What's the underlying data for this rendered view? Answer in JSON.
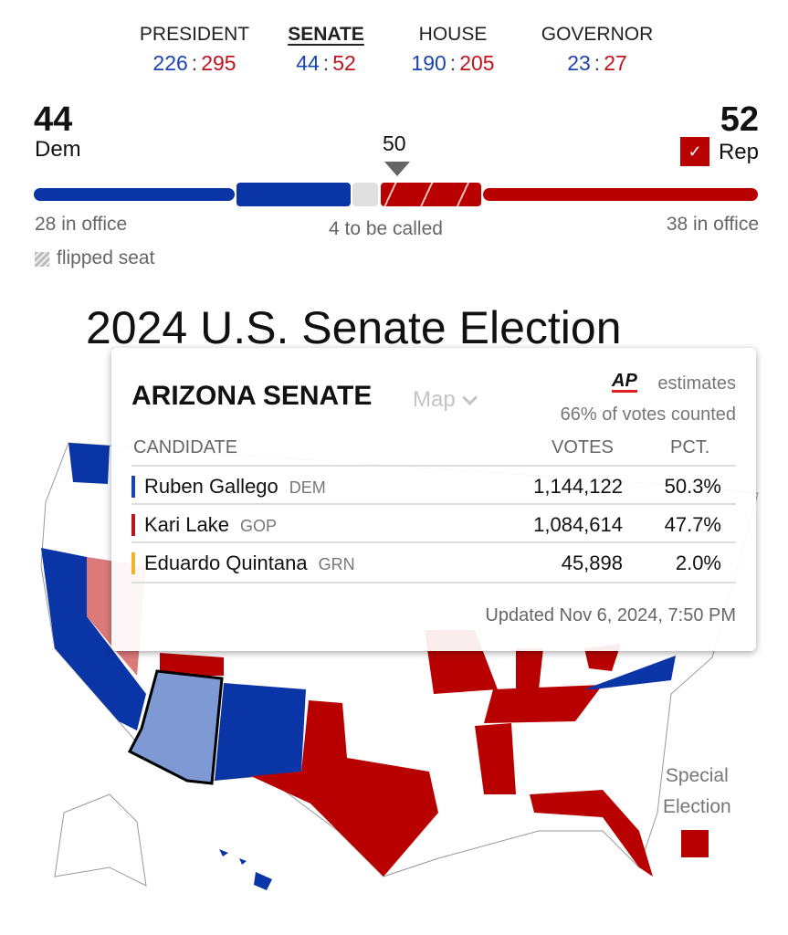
{
  "tabs": [
    {
      "label": "PRESIDENT",
      "dem": "226",
      "rep": "295",
      "active": false
    },
    {
      "label": "SENATE",
      "dem": "44",
      "rep": "52",
      "active": true
    },
    {
      "label": "HOUSE",
      "dem": "190",
      "rep": "205",
      "active": false
    },
    {
      "label": "GOVERNOR",
      "dem": "23",
      "rep": "27",
      "active": false
    }
  ],
  "balance": {
    "dem_total": "44",
    "dem_label": "Dem",
    "rep_total": "52",
    "rep_label": "Rep",
    "rep_winner_check": "✓",
    "majority": "50",
    "dem_in_office": "28 in office",
    "rep_in_office": "38 in office",
    "to_be_called": "4 to be called",
    "legend_flipped": "flipped seat"
  },
  "page_title": "2024 U.S. Senate Election",
  "map_selector": "Map",
  "card": {
    "title": "ARIZONA SENATE",
    "source": "AP",
    "source_suffix": "estimates",
    "reporting": "66% of votes counted",
    "headers": {
      "candidate": "CANDIDATE",
      "votes": "VOTES",
      "pct": "PCT."
    },
    "rows": [
      {
        "name": "Ruben Gallego",
        "party": "DEM",
        "votes": "1,144,122",
        "pct": "50.3%",
        "color": "#1a45b0"
      },
      {
        "name": "Kari Lake",
        "party": "GOP",
        "votes": "1,084,614",
        "pct": "47.7%",
        "color": "#c0141c"
      },
      {
        "name": "Eduardo Quintana",
        "party": "GRN",
        "votes": "45,898",
        "pct": "2.0%",
        "color": "#f0b429"
      }
    ],
    "updated": "Updated Nov 6, 2024, 7:50 PM"
  },
  "legend_special": {
    "line1": "Special",
    "line2": "Election"
  },
  "colors": {
    "dem": "#0a35a6",
    "rep": "#b80000",
    "undecided": "#e0e0e0",
    "az": "#7f99d4"
  }
}
